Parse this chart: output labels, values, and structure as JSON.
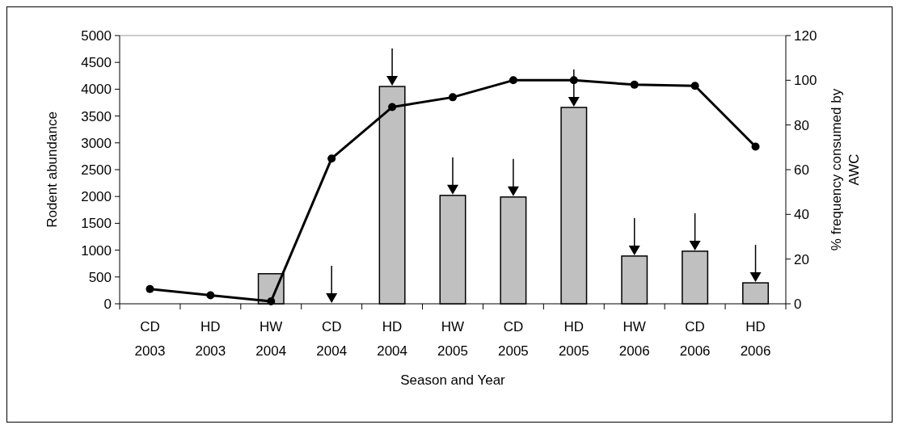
{
  "chart_data": {
    "type": "bar",
    "xlabel": "Season and Year",
    "ylabel": "Rodent abundance",
    "y2label": "% frequency consumed by AWC",
    "categories": [
      "CD 2003",
      "HD 2003",
      "HW 2004",
      "CD 2004",
      "HD 2004",
      "HW 2005",
      "CD 2005",
      "HD 2005",
      "HW 2006",
      "CD 2006",
      "HD 2006"
    ],
    "series": [
      {
        "color": "#c0c0c0",
        "values": [
          0,
          0,
          560,
          0,
          4050,
          2020,
          1990,
          3660,
          890,
          980,
          390
        ]
      },
      {
        "type": "line",
        "axis": "y2",
        "color": "#000000",
        "marker": "circle",
        "values": [
          6.6,
          3.8,
          1.1,
          65,
          88,
          92.4,
          100,
          100,
          98,
          97.5,
          70.3
        ]
      }
    ],
    "ylim": [
      0,
      5000
    ],
    "yticks": [
      0,
      500,
      1000,
      1500,
      2000,
      2500,
      3000,
      3500,
      4000,
      4500,
      5000
    ],
    "y2lim": [
      0,
      120
    ],
    "y2ticks": [
      0,
      20,
      40,
      60,
      80,
      100,
      120
    ],
    "grid": false
  }
}
